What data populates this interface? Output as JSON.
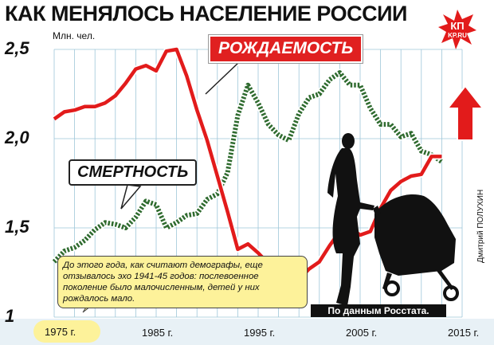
{
  "title": "КАК МЕНЯЛОСЬ НАСЕЛЕНИЕ РОССИИ",
  "logo": {
    "line1": "КП",
    "line2": "KP.RU"
  },
  "colors": {
    "birth_line": "#e21b1b",
    "death_line": "#2f6b2f",
    "grid": "#9ec6d9",
    "background": "#ffffff",
    "note_background": "#fdf29a",
    "arrow": "#e21b1b"
  },
  "note": "До этого года, как считают демографы, еще отзывалось эхо 1941-45 годов: послевоенное поколение было малочисленным, детей у них рождалось мало.",
  "source": "По данным Росстата.",
  "author": "Дмитрий ПОЛУХИН",
  "icons": [
    "trend-up-arrow-icon",
    "mother-with-stroller-silhouette-icon",
    "kp-logo-icon"
  ],
  "chart_data": {
    "type": "line",
    "ylabel": "Млн. чел.",
    "ylim": [
      1.0,
      2.5
    ],
    "xlim": [
      1975,
      2013
    ],
    "y_ticks": [
      {
        "v": 2.5,
        "label": "2,5"
      },
      {
        "v": 2.0,
        "label": "2,0"
      },
      {
        "v": 1.5,
        "label": "1,5"
      },
      {
        "v": 1.0,
        "label": "1"
      }
    ],
    "x_ticks": [
      {
        "v": 1975,
        "label": "1975 г."
      },
      {
        "v": 1985,
        "label": "1985 г."
      },
      {
        "v": 1995,
        "label": "1995 г."
      },
      {
        "v": 2005,
        "label": "2005 г."
      },
      {
        "v": 2015,
        "label": "2015 г."
      }
    ],
    "grid": true,
    "series": [
      {
        "name": "РОЖДАЕМОСТЬ",
        "x": [
          1975,
          1976,
          1977,
          1978,
          1979,
          1980,
          1981,
          1982,
          1983,
          1984,
          1985,
          1986,
          1987,
          1988,
          1989,
          1990,
          1991,
          1992,
          1993,
          1994,
          1995,
          1996,
          1997,
          1998,
          1999,
          2000,
          2001,
          2002,
          2003,
          2004,
          2005,
          2006,
          2007,
          2008,
          2009,
          2010,
          2011,
          2012,
          2013
        ],
        "y": [
          2.11,
          2.15,
          2.16,
          2.18,
          2.18,
          2.2,
          2.24,
          2.31,
          2.39,
          2.41,
          2.38,
          2.49,
          2.5,
          2.35,
          2.16,
          1.99,
          1.79,
          1.59,
          1.38,
          1.41,
          1.36,
          1.3,
          1.26,
          1.28,
          1.21,
          1.27,
          1.31,
          1.4,
          1.48,
          1.5,
          1.46,
          1.48,
          1.61,
          1.71,
          1.76,
          1.79,
          1.8,
          1.9,
          1.9
        ]
      },
      {
        "name": "СМЕРТНОСТЬ",
        "x": [
          1975,
          1976,
          1977,
          1978,
          1979,
          1980,
          1981,
          1982,
          1983,
          1984,
          1985,
          1986,
          1987,
          1988,
          1989,
          1990,
          1991,
          1992,
          1993,
          1994,
          1995,
          1996,
          1997,
          1998,
          1999,
          2000,
          2001,
          2002,
          2003,
          2004,
          2005,
          2006,
          2007,
          2008,
          2009,
          2010,
          2011,
          2012,
          2013
        ],
        "y": [
          1.31,
          1.37,
          1.39,
          1.43,
          1.49,
          1.53,
          1.52,
          1.5,
          1.56,
          1.65,
          1.63,
          1.5,
          1.53,
          1.57,
          1.58,
          1.66,
          1.69,
          1.81,
          2.13,
          2.3,
          2.2,
          2.08,
          2.02,
          1.99,
          2.14,
          2.23,
          2.25,
          2.33,
          2.37,
          2.3,
          2.3,
          2.17,
          2.08,
          2.08,
          2.01,
          2.03,
          1.93,
          1.91,
          1.87
        ]
      }
    ]
  }
}
